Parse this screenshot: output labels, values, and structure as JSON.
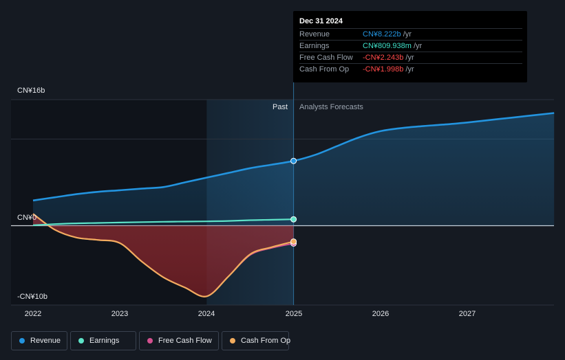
{
  "tooltip": {
    "date": "Dec 31 2024",
    "rows": [
      {
        "name": "Revenue",
        "value": "CN¥8.222b",
        "unit": " /yr",
        "color": "#2394df"
      },
      {
        "name": "Earnings",
        "value": "CN¥809.938m",
        "unit": " /yr",
        "color": "#3fe0c8"
      },
      {
        "name": "Free Cash Flow",
        "value": "-CN¥2.243b",
        "unit": " /yr",
        "color": "#ff4a4a"
      },
      {
        "name": "Cash From Op",
        "value": "-CN¥1.998b",
        "unit": " /yr",
        "color": "#ff4a4a"
      }
    ]
  },
  "regions": {
    "past": "Past",
    "forecast": "Analysts Forecasts"
  },
  "legend": [
    {
      "label": "Revenue",
      "color": "#2394df"
    },
    {
      "label": "Earnings",
      "color": "#5ee3c8"
    },
    {
      "label": "Free Cash Flow",
      "color": "#d4508f"
    },
    {
      "label": "Cash From Op",
      "color": "#f2ac5e"
    }
  ],
  "chart_data": {
    "type": "line",
    "y_axis_labels": [
      "CN¥16b",
      "CN¥0",
      "-CN¥10b"
    ],
    "x_tick_labels": [
      "2022",
      "2023",
      "2024",
      "2025",
      "2026",
      "2027"
    ],
    "ylim": [
      -10,
      16
    ],
    "unit": "CN¥ billions",
    "past_end": 2025.0,
    "highlight_start": 2024.0,
    "series": [
      {
        "name": "Revenue",
        "color": "#2394df",
        "forecast": true,
        "x": [
          2022.0,
          2022.25,
          2022.5,
          2022.75,
          2023.0,
          2023.25,
          2023.5,
          2023.75,
          2024.0,
          2024.25,
          2024.5,
          2024.75,
          2025.0,
          2025.25,
          2025.5,
          2025.75,
          2026.0,
          2026.25,
          2026.5,
          2026.75,
          2027.0,
          2027.25,
          2027.5,
          2027.75,
          2028.0
        ],
        "y": [
          3.2,
          3.6,
          4.0,
          4.3,
          4.5,
          4.7,
          4.9,
          5.5,
          6.1,
          6.7,
          7.3,
          7.75,
          8.222,
          9.0,
          10.1,
          11.2,
          12.0,
          12.4,
          12.65,
          12.85,
          13.1,
          13.4,
          13.7,
          14.0,
          14.3
        ]
      },
      {
        "name": "Earnings",
        "color": "#5ee3c8",
        "forecast": false,
        "x": [
          2022.0,
          2022.25,
          2022.5,
          2022.75,
          2023.0,
          2023.25,
          2023.5,
          2023.75,
          2024.0,
          2024.25,
          2024.5,
          2024.75,
          2025.0
        ],
        "y": [
          0.05,
          0.2,
          0.3,
          0.35,
          0.4,
          0.45,
          0.5,
          0.52,
          0.55,
          0.6,
          0.7,
          0.75,
          0.81
        ]
      },
      {
        "name": "Free Cash Flow",
        "color": "#d4508f",
        "forecast": false,
        "x": [
          2022.0,
          2022.25,
          2022.5,
          2022.75,
          2023.0,
          2023.25,
          2023.5,
          2023.75,
          2024.0,
          2024.25,
          2024.5,
          2024.75,
          2025.0
        ],
        "y": [
          1.5,
          -0.5,
          -1.5,
          -1.8,
          -2.2,
          -4.5,
          -6.5,
          -7.8,
          -8.9,
          -6.4,
          -3.7,
          -2.8,
          -2.243
        ]
      },
      {
        "name": "Cash From Op",
        "color": "#f2ac5e",
        "forecast": false,
        "x": [
          2022.0,
          2022.25,
          2022.5,
          2022.75,
          2023.0,
          2023.25,
          2023.5,
          2023.75,
          2024.0,
          2024.25,
          2024.5,
          2024.75,
          2025.0
        ],
        "y": [
          1.5,
          -0.5,
          -1.5,
          -1.8,
          -2.2,
          -4.5,
          -6.5,
          -7.8,
          -8.9,
          -6.4,
          -3.6,
          -2.7,
          -1.998
        ]
      }
    ]
  }
}
